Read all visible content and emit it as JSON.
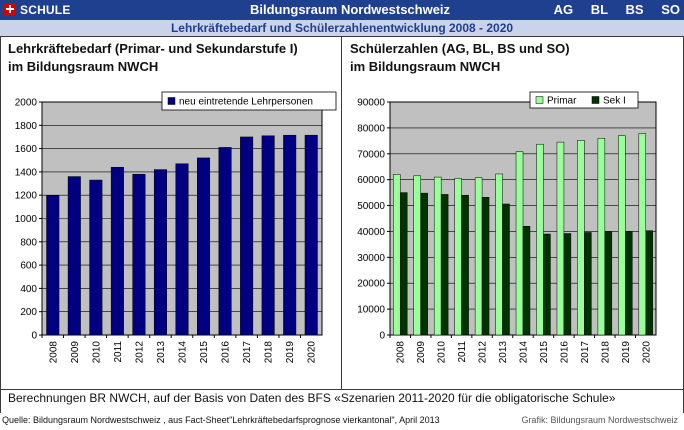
{
  "header": {
    "brand_label": "SCHULE SCHWEIZ",
    "title": "Bildungsraum Nordwestschweiz",
    "cantons": [
      "AG",
      "BL",
      "BS",
      "SO"
    ],
    "subtitle": "Lehrkräftebedarf und Schülerzahlenentwicklung 2008 - 2020"
  },
  "colors": {
    "header_bg": "#1f3f8f",
    "subbar_bg": "#c9d3ea",
    "plot_bg": "#c0c0c0",
    "bar_teachers": "#000080",
    "bar_primar": "#99ff99",
    "bar_seki": "#003300"
  },
  "panel_left": {
    "title_line1": "Lehrkräftebedarf (Primar- und Sekundarstufe I)",
    "title_line2": "im Bildungsraum NWCH"
  },
  "panel_right": {
    "title_line1": "Schülerzahlen (AG, BL, BS und SO)",
    "title_line2": "im Bildungsraum NWCH"
  },
  "footer": {
    "source_note": "Berechnungen BR NWCH, auf der Basis von Daten des BFS «Szenarien 2011-2020 für die obligatorische Schule»",
    "credit_left": "Quelle: Bildungsraum Nordwestschweiz , aus Fact-Sheet\"Lehrkräftebedarfsprognose vierkantonal\", April 2013",
    "credit_right": "Grafik: Bildungsraum Nordwestschweiz"
  },
  "chart_data": [
    {
      "type": "bar",
      "categories": [
        "2008",
        "2009",
        "2010",
        "2011",
        "2012",
        "2013",
        "2014",
        "2015",
        "2016",
        "2017",
        "2018",
        "2019",
        "2020"
      ],
      "series": [
        {
          "name": "neu eintretende Lehrpersonen",
          "values": [
            1195,
            1360,
            1330,
            1440,
            1380,
            1420,
            1470,
            1520,
            1610,
            1700,
            1710,
            1715,
            1715
          ]
        }
      ],
      "ylim": [
        0,
        2000
      ],
      "yticks": [
        0,
        200,
        400,
        600,
        800,
        1000,
        1200,
        1400,
        1600,
        1800,
        2000
      ],
      "grid": true,
      "legend": "top-right"
    },
    {
      "type": "bar",
      "categories": [
        "2008",
        "2009",
        "2010",
        "2011",
        "2012",
        "2013",
        "2014",
        "2015",
        "2016",
        "2017",
        "2018",
        "2019",
        "2020"
      ],
      "series": [
        {
          "name": "Primar",
          "values": [
            62000,
            61500,
            61000,
            60500,
            60800,
            62200,
            70800,
            73700,
            74500,
            75200,
            76000,
            77000,
            77800
          ]
        },
        {
          "name": "Sek I",
          "values": [
            55000,
            54800,
            54300,
            54000,
            53200,
            50600,
            42000,
            39000,
            39200,
            39600,
            39900,
            40000,
            40300
          ]
        }
      ],
      "ylim": [
        0,
        90000
      ],
      "yticks": [
        0,
        10000,
        20000,
        30000,
        40000,
        50000,
        60000,
        70000,
        80000,
        90000
      ],
      "grid": true,
      "legend": "top-right"
    }
  ]
}
